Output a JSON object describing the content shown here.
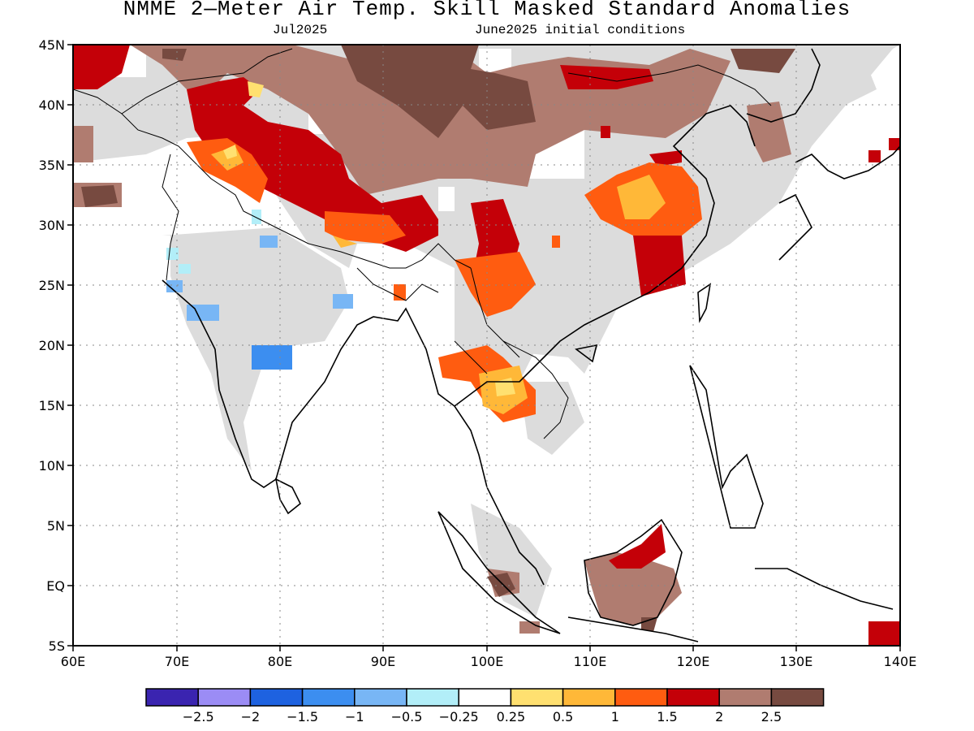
{
  "title": "NMME 2—Meter Air Temp. Skill Masked Standard Anomalies",
  "subtitle_left": "Jul2025",
  "subtitle_right": "June2025 initial conditions",
  "map": {
    "region": "South and East Asia",
    "lon_range": [
      60,
      140
    ],
    "lat_range": [
      -5,
      45
    ],
    "lon_ticks": [
      "60E",
      "70E",
      "80E",
      "90E",
      "100E",
      "110E",
      "120E",
      "130E",
      "140E"
    ],
    "lat_ticks": [
      "45N",
      "40N",
      "35N",
      "30N",
      "25N",
      "20N",
      "15N",
      "10N",
      "5N",
      "EQ",
      "5S"
    ],
    "grid": "dotted"
  },
  "colorbar": {
    "colors": [
      "#3a24b0",
      "#9b8cf5",
      "#1e62e0",
      "#3c8ef0",
      "#78b6f5",
      "#b2eef8",
      "#ffffff",
      "#ffe070",
      "#ffb838",
      "#ff5c10",
      "#c40008",
      "#b07c70",
      "#774a40"
    ],
    "labels": [
      "−2.5",
      "−2",
      "−1.5",
      "−1",
      "−0.5",
      "−0.25",
      "0.25",
      "0.5",
      "1",
      "1.5",
      "2",
      "2.5"
    ]
  },
  "legend_categories": {
    "masked": "#dcdcdc"
  }
}
